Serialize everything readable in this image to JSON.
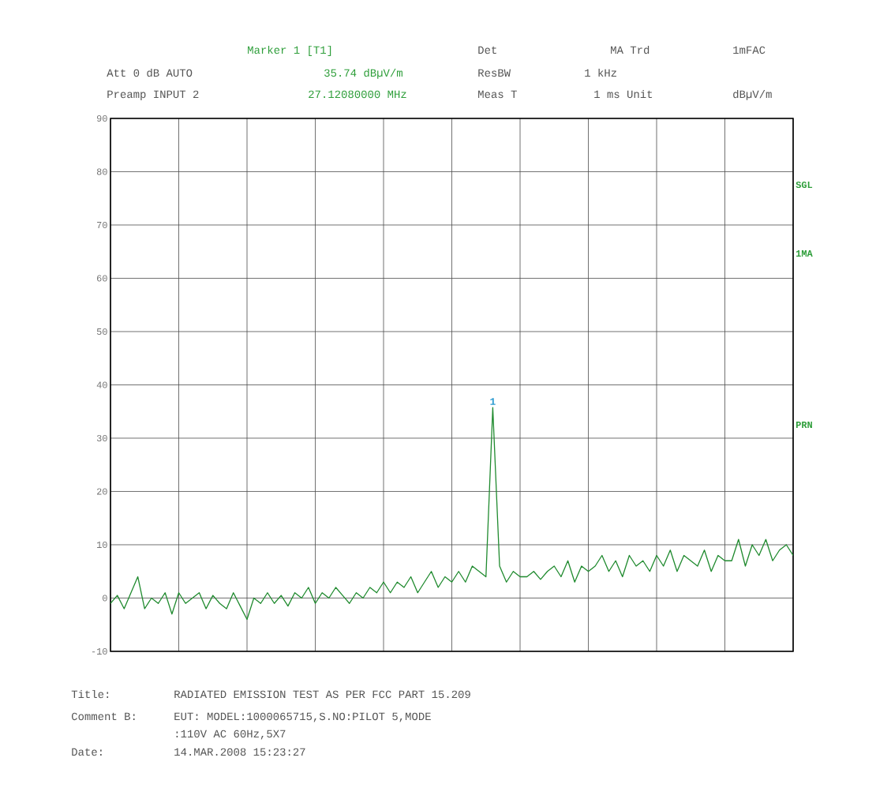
{
  "chart_data": {
    "type": "line",
    "title": "RADIATED EMISSION TEST AS PER FCC PART 15.209",
    "categories": [
      null,
      null,
      null,
      null,
      null,
      null,
      null,
      null,
      null,
      null,
      null,
      null,
      null,
      null,
      null,
      null,
      null,
      null,
      null,
      null,
      null,
      null,
      null,
      null,
      null,
      null,
      null,
      null,
      null,
      null,
      null,
      null,
      null,
      null,
      null,
      null,
      null,
      null,
      null,
      null,
      null,
      null,
      null,
      null,
      null,
      null,
      null,
      null,
      null,
      null,
      null,
      null,
      null,
      null,
      null,
      null,
      null,
      null,
      null,
      null,
      null,
      null,
      null,
      null,
      null,
      null,
      null,
      null,
      null,
      null,
      null,
      null,
      null,
      null,
      null,
      null,
      null,
      null,
      null,
      null,
      null,
      null,
      null,
      null,
      null,
      null,
      null,
      null,
      null,
      null,
      null,
      null,
      null,
      null,
      null,
      null,
      null,
      null,
      null,
      null,
      null
    ],
    "series": [
      {
        "color": "#1f8a2e",
        "values": [
          -1,
          0.5,
          -2,
          1,
          4,
          -2,
          0,
          -1,
          1,
          -3,
          1,
          -1,
          0,
          1,
          -2,
          0.5,
          -1,
          -2,
          1,
          -1.5,
          -4,
          0,
          -1,
          1,
          -1,
          0.5,
          -1.5,
          1,
          0,
          2,
          -1,
          1,
          0,
          2,
          0.5,
          -1,
          1,
          0,
          2,
          1,
          3,
          1,
          3,
          2,
          4,
          1,
          3,
          5,
          2,
          4,
          3,
          5,
          3,
          6,
          5,
          4,
          35.74,
          6,
          3,
          5,
          4,
          4,
          5,
          3.5,
          5,
          6,
          4,
          7,
          3,
          6,
          5,
          6,
          8,
          5,
          7,
          4,
          8,
          6,
          7,
          5,
          8,
          6,
          9,
          5,
          8,
          7,
          6,
          9,
          5,
          8,
          7,
          7,
          11,
          6,
          10,
          8,
          11,
          7,
          9,
          10,
          8
        ]
      }
    ],
    "ylim": [
      -10,
      90
    ],
    "yticks": [
      -10,
      0,
      10,
      20,
      30,
      40,
      50,
      60,
      70,
      80,
      90
    ],
    "grid": true,
    "tick_labels": "y",
    "marker": "none",
    "line_style": "solid",
    "annotations": [
      "Marker 1 [T1]",
      "Att 0 dB AUTO",
      "35.74 dBµV/m",
      "Preamp INPUT 2",
      "27.12080000 MHz",
      "Det",
      "ResBW",
      "Meas T",
      "MA Trd",
      "1 kHz",
      "1 ms Unit",
      "1mFAC",
      "dBµV/m",
      "SGL",
      "1MA",
      "PRN",
      "Title:",
      "Comment B:",
      "EUT: MODEL:1000065715,S.NO:PILOT 5,MODE",
      ":110V AC 60Hz,5X7",
      "Date:",
      "14.MAR.2008  15:23:27",
      {
        "text": "1",
        "y": 35.74
      }
    ]
  }
}
